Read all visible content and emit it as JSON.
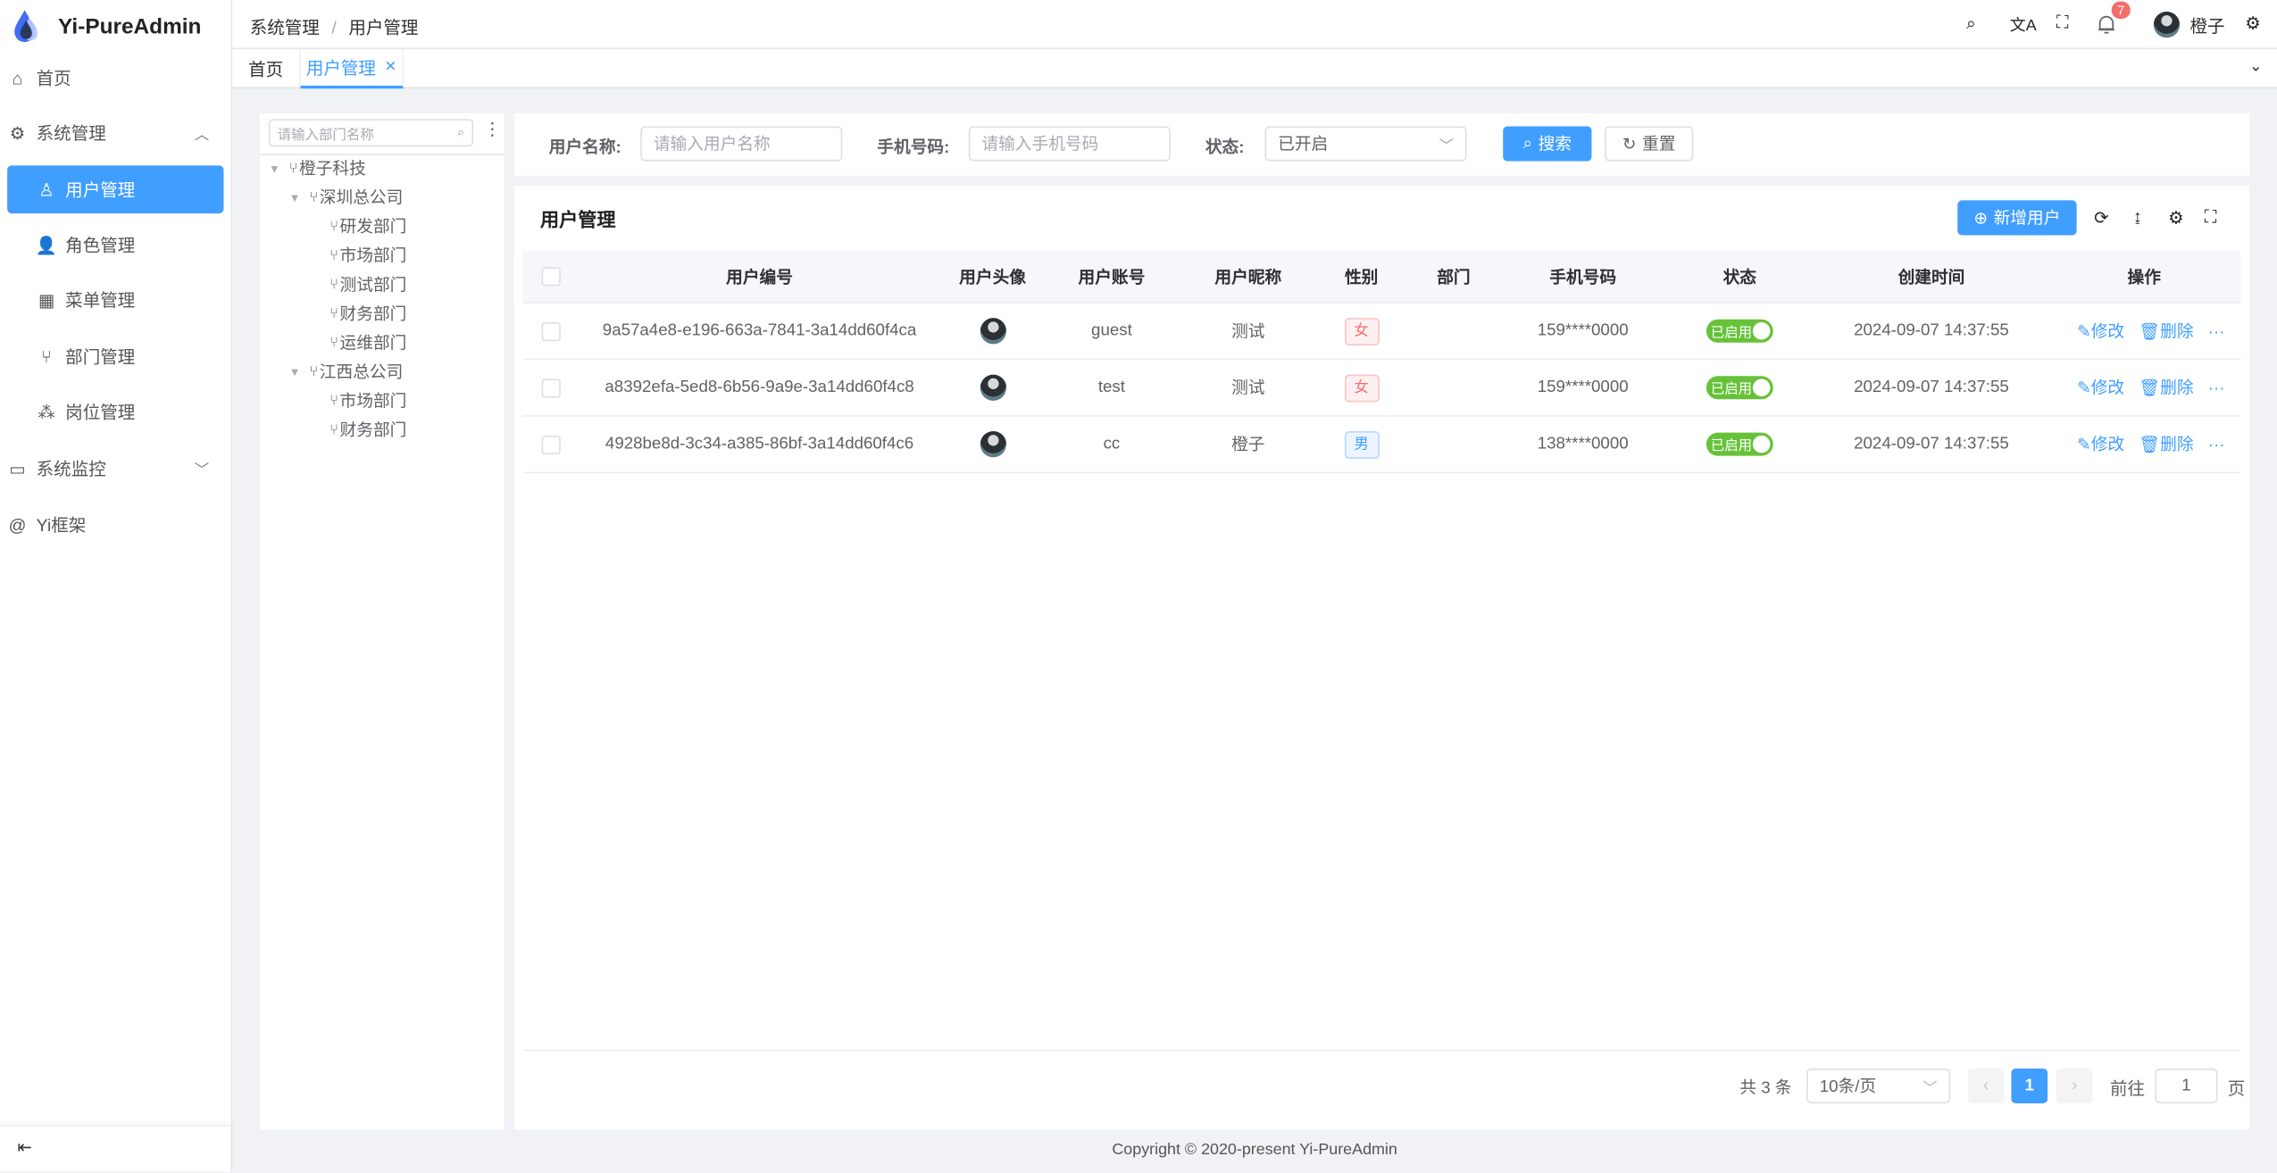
{
  "app": {
    "title": "Yi-PureAdmin",
    "accent": "#409eff"
  },
  "sidebar": {
    "items": [
      {
        "label": "首页",
        "icon": "home-icon"
      },
      {
        "label": "系统管理",
        "icon": "gear-icon",
        "expanded": true
      },
      {
        "label": "用户管理",
        "icon": "user-icon",
        "active": true
      },
      {
        "label": "角色管理",
        "icon": "role-icon"
      },
      {
        "label": "菜单管理",
        "icon": "grid-icon"
      },
      {
        "label": "部门管理",
        "icon": "branch-icon"
      },
      {
        "label": "岗位管理",
        "icon": "org-icon"
      },
      {
        "label": "系统监控",
        "icon": "monitor-icon"
      },
      {
        "label": "Yi框架",
        "icon": "at-icon"
      }
    ]
  },
  "header": {
    "breadcrumb": [
      "系统管理",
      "用户管理"
    ],
    "separator": "/",
    "notification_count": "7",
    "username": "橙子"
  },
  "tabs": [
    {
      "label": "首页"
    },
    {
      "label": "用户管理",
      "active": true
    }
  ],
  "tree": {
    "placeholder": "请输入部门名称",
    "nodes": [
      {
        "label": "橙子科技",
        "level": 0
      },
      {
        "label": "深圳总公司",
        "level": 1
      },
      {
        "label": "研发部门",
        "level": 2
      },
      {
        "label": "市场部门",
        "level": 2
      },
      {
        "label": "测试部门",
        "level": 2
      },
      {
        "label": "财务部门",
        "level": 2
      },
      {
        "label": "运维部门",
        "level": 2
      },
      {
        "label": "江西总公司",
        "level": 1
      },
      {
        "label": "市场部门",
        "level": 2
      },
      {
        "label": "财务部门",
        "level": 2
      }
    ]
  },
  "filter": {
    "username_label": "用户名称:",
    "username_placeholder": "请输入用户名称",
    "phone_label": "手机号码:",
    "phone_placeholder": "请输入手机号码",
    "status_label": "状态:",
    "status_value": "已开启",
    "search": "搜索",
    "reset": "重置"
  },
  "table": {
    "title": "用户管理",
    "add_button": "新增用户",
    "columns": [
      "用户编号",
      "用户头像",
      "用户账号",
      "用户昵称",
      "性别",
      "部门",
      "手机号码",
      "状态",
      "创建时间",
      "操作"
    ],
    "rows": [
      {
        "id": "9a57a4e8-e196-663a-7841-3a14dd60f4ca",
        "account": "guest",
        "nickname": "测试",
        "gender": "女",
        "dept": "",
        "phone": "159****0000",
        "status": "已启用",
        "created": "2024-09-07 14:37:55"
      },
      {
        "id": "a8392efa-5ed8-6b56-9a9e-3a14dd60f4c8",
        "account": "test",
        "nickname": "测试",
        "gender": "女",
        "dept": "",
        "phone": "159****0000",
        "status": "已启用",
        "created": "2024-09-07 14:37:55"
      },
      {
        "id": "4928be8d-3c34-a385-86bf-3a14dd60f4c6",
        "account": "cc",
        "nickname": "橙子",
        "gender": "男",
        "dept": "",
        "phone": "138****0000",
        "status": "已启用",
        "created": "2024-09-07 14:37:55"
      }
    ],
    "edit": "修改",
    "delete": "删除",
    "more": "···"
  },
  "pagination": {
    "total": "共 3 条",
    "page_size": "10条/页",
    "current": "1",
    "goto_label": "前往",
    "goto_value": "1",
    "page_suffix": "页"
  },
  "footer": {
    "copyright": "Copyright © 2020-present Yi-PureAdmin"
  }
}
